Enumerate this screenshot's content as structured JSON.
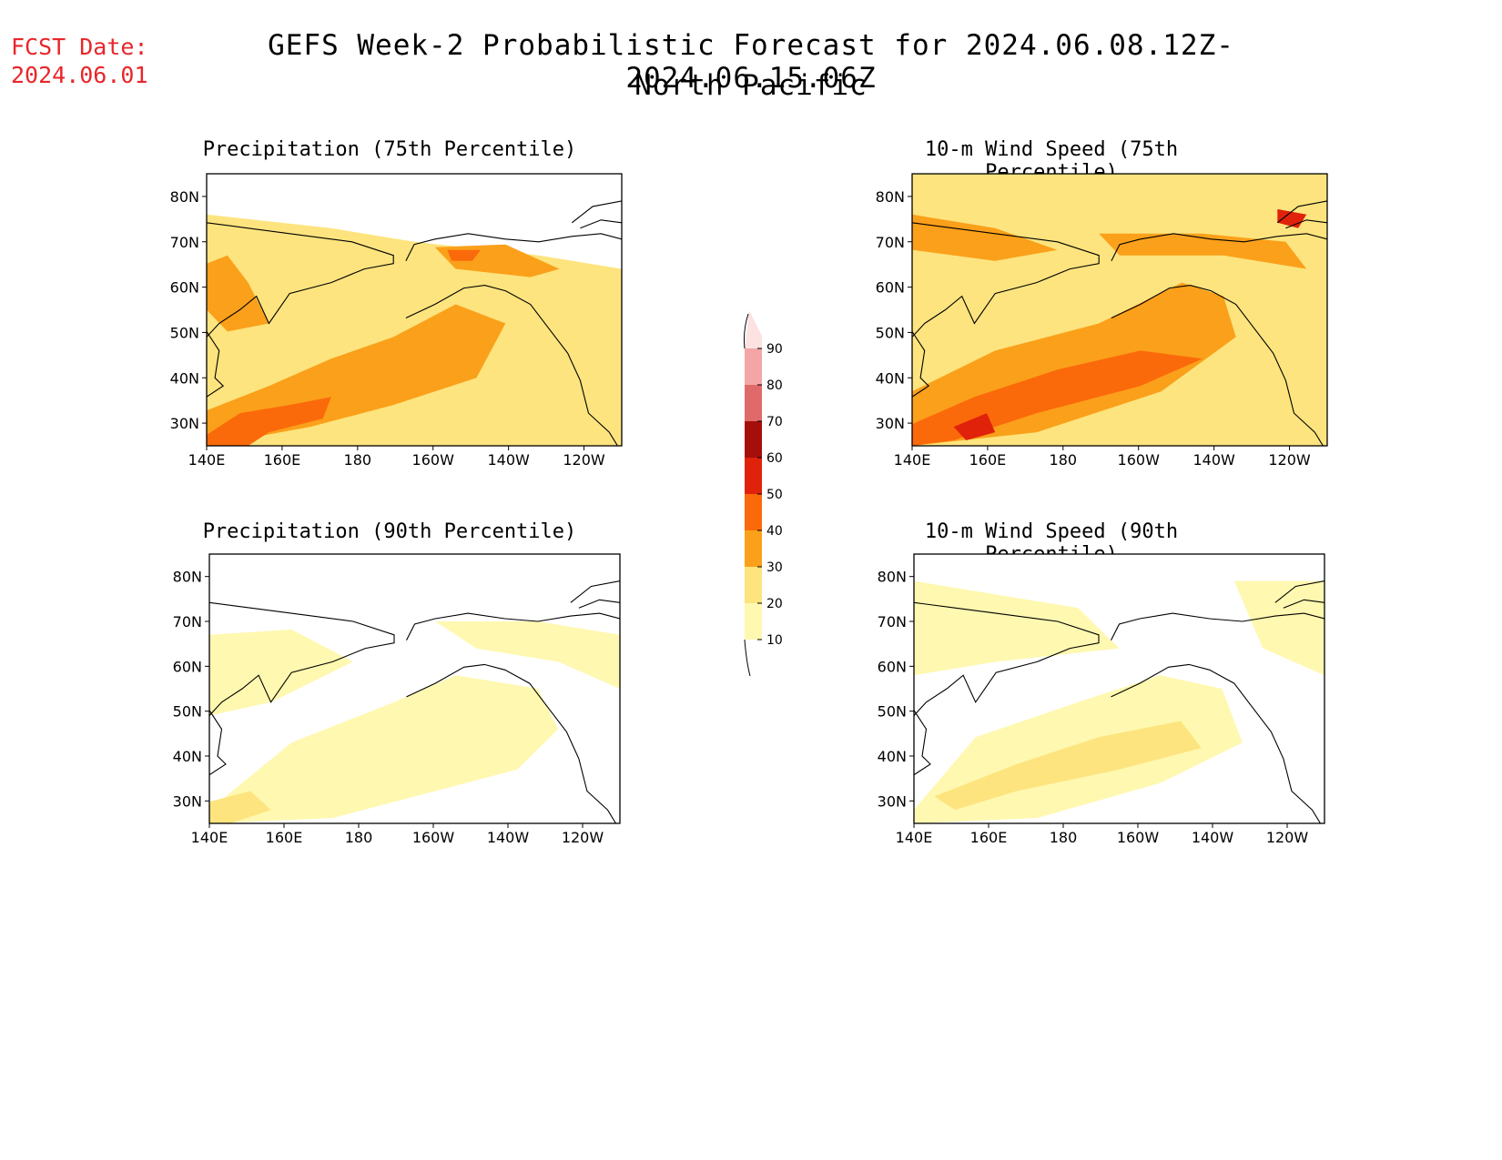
{
  "header": {
    "fcst_label": "FCST Date:",
    "fcst_date": "2024.06.01",
    "title": "GEFS Week-2 Probabilistic Forecast for 2024.06.08.12Z-2024.06.15.06Z",
    "subtitle": "North Pacific"
  },
  "panels": [
    {
      "title": "Precipitation (75th Percentile)",
      "level": "high"
    },
    {
      "title": "10-m Wind Speed (75th Percentile)",
      "level": "high"
    },
    {
      "title": "Precipitation (90th Percentile)",
      "level": "low"
    },
    {
      "title": "10-m Wind Speed (90th Percentile)",
      "level": "low"
    }
  ],
  "axes": {
    "lat_labels": [
      "80N",
      "70N",
      "60N",
      "50N",
      "40N",
      "30N"
    ],
    "lon_labels": [
      "140E",
      "160E",
      "180",
      "160W",
      "140W",
      "120W"
    ]
  },
  "colorbar": {
    "levels": [
      "10",
      "20",
      "30",
      "40",
      "50",
      "60",
      "70",
      "80",
      "90"
    ],
    "colors": [
      "#fff8b0",
      "#fde47e",
      "#fba01a",
      "#fb6a0a",
      "#e0220a",
      "#a50f0a",
      "#e06a6a",
      "#f4a6a6",
      "#fde2e2"
    ]
  },
  "map": {
    "lat_range": [
      25,
      85
    ],
    "lon_range_east": [
      140,
      250
    ],
    "land_outline_color": "#000000"
  }
}
